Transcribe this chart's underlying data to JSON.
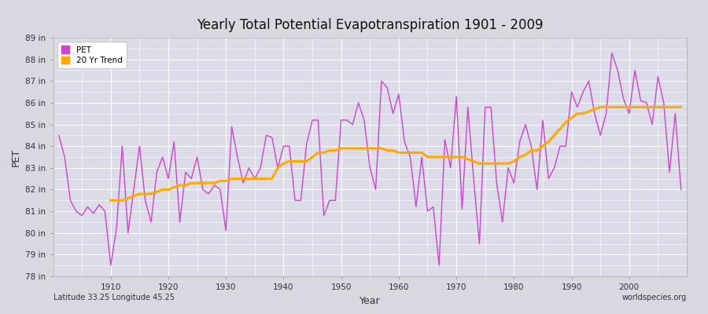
{
  "title": "Yearly Total Potential Evapotranspiration 1901 - 2009",
  "xlabel": "Year",
  "ylabel": "PET",
  "subtitle_left": "Latitude 33.25 Longitude 45.25",
  "subtitle_right": "worldspecies.org",
  "pet_color": "#cc44cc",
  "trend_color": "#ffaa00",
  "fig_bg_color": "#d8d8e0",
  "plot_bg_color": "#dcdce8",
  "ylim": [
    78,
    89
  ],
  "xlim": [
    1900,
    2010
  ],
  "ytick_labels": [
    "78 in",
    "79 in",
    "80 in",
    "81 in",
    "82 in",
    "83 in",
    "84 in",
    "85 in",
    "86 in",
    "87 in",
    "88 in",
    "89 in"
  ],
  "ytick_vals": [
    78,
    79,
    80,
    81,
    82,
    83,
    84,
    85,
    86,
    87,
    88,
    89
  ],
  "xtick_vals": [
    1910,
    1920,
    1930,
    1940,
    1950,
    1960,
    1970,
    1980,
    1990,
    2000
  ],
  "years": [
    1901,
    1902,
    1903,
    1904,
    1905,
    1906,
    1907,
    1908,
    1909,
    1910,
    1911,
    1912,
    1913,
    1914,
    1915,
    1916,
    1917,
    1918,
    1919,
    1920,
    1921,
    1922,
    1923,
    1924,
    1925,
    1926,
    1927,
    1928,
    1929,
    1930,
    1931,
    1932,
    1933,
    1934,
    1935,
    1936,
    1937,
    1938,
    1939,
    1940,
    1941,
    1942,
    1943,
    1944,
    1945,
    1946,
    1947,
    1948,
    1949,
    1950,
    1951,
    1952,
    1953,
    1954,
    1955,
    1956,
    1957,
    1958,
    1959,
    1960,
    1961,
    1962,
    1963,
    1964,
    1965,
    1966,
    1967,
    1968,
    1969,
    1970,
    1971,
    1972,
    1973,
    1974,
    1975,
    1976,
    1977,
    1978,
    1979,
    1980,
    1981,
    1982,
    1983,
    1984,
    1985,
    1986,
    1987,
    1988,
    1989,
    1990,
    1991,
    1992,
    1993,
    1994,
    1995,
    1996,
    1997,
    1998,
    1999,
    2000,
    2001,
    2002,
    2003,
    2004,
    2005,
    2006,
    2007,
    2008,
    2009
  ],
  "pet_values": [
    84.5,
    83.5,
    81.5,
    81.0,
    80.8,
    81.2,
    80.9,
    81.3,
    81.0,
    78.5,
    80.2,
    84.0,
    80.0,
    82.0,
    84.0,
    81.5,
    80.5,
    82.8,
    83.5,
    82.5,
    84.2,
    80.5,
    82.8,
    82.5,
    83.5,
    82.0,
    81.8,
    82.2,
    82.0,
    80.1,
    84.9,
    83.5,
    82.3,
    83.0,
    82.5,
    83.0,
    84.5,
    84.4,
    83.0,
    84.0,
    84.0,
    81.5,
    81.5,
    84.1,
    85.2,
    85.2,
    80.8,
    81.5,
    81.5,
    85.2,
    85.2,
    85.0,
    86.0,
    85.2,
    83.0,
    82.0,
    87.0,
    86.7,
    85.5,
    86.4,
    84.2,
    83.5,
    81.2,
    83.5,
    81.0,
    81.2,
    78.5,
    84.3,
    83.0,
    86.3,
    81.1,
    85.8,
    82.5,
    79.5,
    85.8,
    85.8,
    82.3,
    80.5,
    83.0,
    82.3,
    84.2,
    85.0,
    84.0,
    82.0,
    85.2,
    82.5,
    83.0,
    84.0,
    84.0,
    86.5,
    85.8,
    86.5,
    87.0,
    85.5,
    84.5,
    85.5,
    88.3,
    87.5,
    86.2,
    85.5,
    87.5,
    86.1,
    86.0,
    85.0,
    87.2,
    86.0,
    82.8,
    85.5,
    82.0
  ],
  "trend_values": [
    null,
    null,
    null,
    null,
    null,
    null,
    null,
    null,
    null,
    81.5,
    81.5,
    81.5,
    81.6,
    81.7,
    81.8,
    81.8,
    81.8,
    81.9,
    82.0,
    82.0,
    82.1,
    82.2,
    82.2,
    82.3,
    82.3,
    82.3,
    82.3,
    82.3,
    82.4,
    82.4,
    82.5,
    82.5,
    82.5,
    82.5,
    82.5,
    82.5,
    82.5,
    82.5,
    83.0,
    83.2,
    83.3,
    83.3,
    83.3,
    83.3,
    83.5,
    83.7,
    83.7,
    83.8,
    83.8,
    83.9,
    83.9,
    83.9,
    83.9,
    83.9,
    83.9,
    83.9,
    83.9,
    83.8,
    83.8,
    83.7,
    83.7,
    83.7,
    83.7,
    83.7,
    83.5,
    83.5,
    83.5,
    83.5,
    83.5,
    83.5,
    83.5,
    83.4,
    83.3,
    83.2,
    83.2,
    83.2,
    83.2,
    83.2,
    83.2,
    83.3,
    83.5,
    83.6,
    83.8,
    83.8,
    84.0,
    84.2,
    84.5,
    84.8,
    85.1,
    85.3,
    85.5,
    85.5,
    85.6,
    85.7,
    85.8,
    85.8,
    85.8,
    85.8,
    85.8,
    85.8,
    85.8,
    85.8,
    85.8,
    85.8,
    85.8,
    85.8,
    85.8,
    85.8,
    85.8
  ]
}
